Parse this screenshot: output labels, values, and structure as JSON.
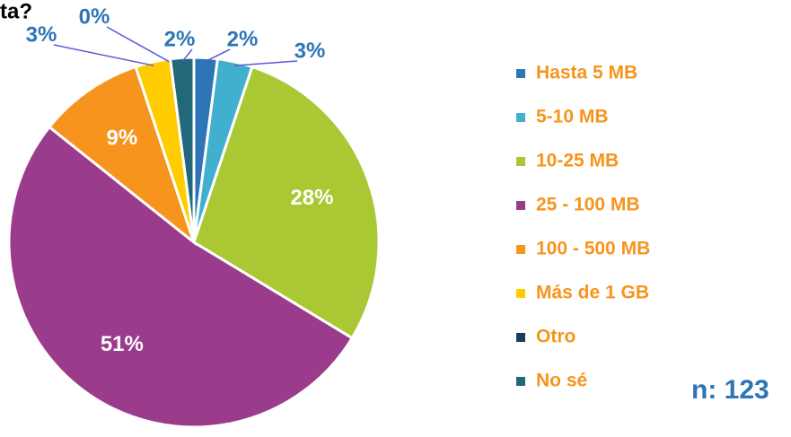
{
  "chart_data": {
    "type": "pie",
    "title": "ta?",
    "annotation": "n: 123",
    "categories": [
      "Hasta 5 MB",
      "5-10 MB",
      "10-25 MB",
      "25 - 100 MB",
      "100 - 500 MB",
      "Más de 1 GB",
      "Otro",
      "No sé"
    ],
    "values": [
      2,
      3,
      28,
      51,
      9,
      3,
      0,
      2
    ],
    "colors": [
      "#2e75b6",
      "#41b0cf",
      "#a9c833",
      "#9b3b8c",
      "#f7941d",
      "#ffcc00",
      "#1b3a5c",
      "#21687a"
    ],
    "legend": "right"
  }
}
